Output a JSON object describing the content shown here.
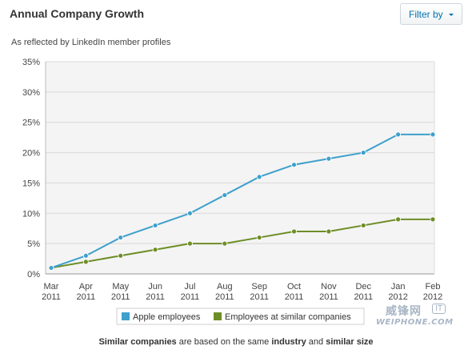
{
  "header": {
    "title": "Annual Company Growth",
    "filter_label": "Filter by"
  },
  "subtitle": "As reflected by LinkedIn member profiles",
  "footer": {
    "part1": "Similar companies",
    "part2": " are based on the same ",
    "part3": "industry",
    "part4": " and ",
    "part5": "similar size"
  },
  "watermark": {
    "cn": "威锋网",
    "badge": "IT",
    "en": "WEIPHONE.COM"
  },
  "colors": {
    "apple": "#3ea0cc",
    "similar": "#6e8d26",
    "plot_bg": "#f4f4f4",
    "grid": "#d8d8d8"
  },
  "chart_data": {
    "type": "line",
    "title": "",
    "xlabel": "",
    "ylabel": "",
    "ylim": [
      0,
      35
    ],
    "yticks": [
      "0%",
      "5%",
      "10%",
      "15%",
      "20%",
      "25%",
      "30%",
      "35%"
    ],
    "grid": true,
    "legend_position": "bottom",
    "categories": [
      [
        "Mar",
        "2011"
      ],
      [
        "Apr",
        "2011"
      ],
      [
        "May",
        "2011"
      ],
      [
        "Jun",
        "2011"
      ],
      [
        "Jul",
        "2011"
      ],
      [
        "Aug",
        "2011"
      ],
      [
        "Sep",
        "2011"
      ],
      [
        "Oct",
        "2011"
      ],
      [
        "Nov",
        "2011"
      ],
      [
        "Dec",
        "2011"
      ],
      [
        "Jan",
        "2012"
      ],
      [
        "Feb",
        "2012"
      ]
    ],
    "series": [
      {
        "name": "Apple employees",
        "values": [
          1,
          3,
          6,
          8,
          10,
          13,
          16,
          18,
          19,
          20,
          23,
          23
        ]
      },
      {
        "name": "Employees at similar companies",
        "values": [
          1,
          2,
          3,
          4,
          5,
          5,
          6,
          7,
          7,
          8,
          9,
          9
        ]
      }
    ]
  }
}
